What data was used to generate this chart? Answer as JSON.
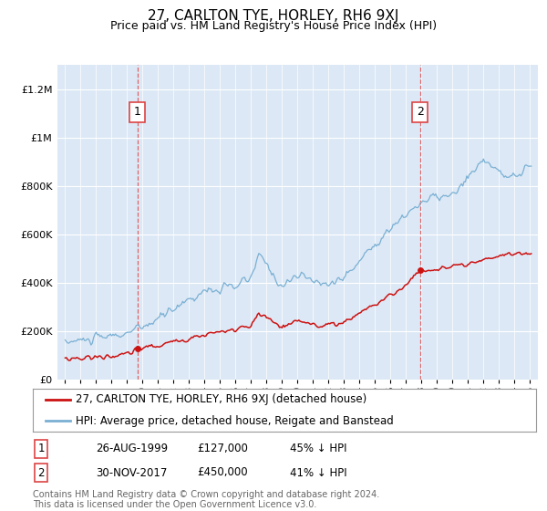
{
  "title": "27, CARLTON TYE, HORLEY, RH6 9XJ",
  "subtitle": "Price paid vs. HM Land Registry's House Price Index (HPI)",
  "plot_background": "#dce8f5",
  "legend_label_red": "27, CARLTON TYE, HORLEY, RH6 9XJ (detached house)",
  "legend_label_blue": "HPI: Average price, detached house, Reigate and Banstead",
  "footnote": "Contains HM Land Registry data © Crown copyright and database right 2024.\nThis data is licensed under the Open Government Licence v3.0.",
  "transaction1_date": "26-AUG-1999",
  "transaction1_price": 127000,
  "transaction1_label": "1",
  "transaction1_note": "45% ↓ HPI",
  "transaction2_date": "30-NOV-2017",
  "transaction2_price": 450000,
  "transaction2_label": "2",
  "transaction2_note": "41% ↓ HPI",
  "transaction1_x": 1999.65,
  "transaction2_x": 2017.9,
  "ylim_max": 1300000,
  "xlim_min": 1994.5,
  "xlim_max": 2025.5,
  "red_color": "#cc1111",
  "blue_color": "#7ab0d4",
  "dashed_color": "#dd4444"
}
